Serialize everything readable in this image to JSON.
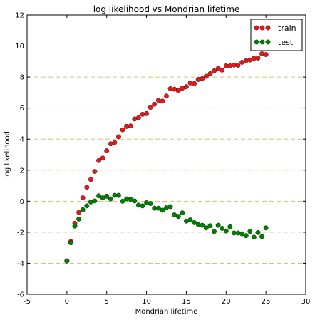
{
  "chart_data": {
    "type": "scatter",
    "title": "log likelihood vs Mondrian lifetime",
    "xlabel": "Mondrian lifetime",
    "ylabel": "log likelihood",
    "xlim": [
      -5,
      30
    ],
    "ylim": [
      -6,
      12
    ],
    "xticks": [
      -5,
      0,
      5,
      10,
      15,
      20,
      25,
      30
    ],
    "yticks": [
      -6,
      -4,
      -2,
      0,
      2,
      4,
      6,
      8,
      10,
      12
    ],
    "grid": "horizontal dashed",
    "legend_position": "top-right",
    "series": [
      {
        "name": "train",
        "color": "#e31a1c",
        "points": [
          [
            0.0,
            -3.85
          ],
          [
            0.5,
            -2.6
          ],
          [
            1.0,
            -1.42
          ],
          [
            1.5,
            -0.72
          ],
          [
            2.0,
            0.22
          ],
          [
            2.5,
            0.9
          ],
          [
            3.0,
            1.4
          ],
          [
            3.5,
            1.92
          ],
          [
            4.0,
            2.62
          ],
          [
            4.5,
            2.78
          ],
          [
            5.0,
            3.25
          ],
          [
            5.5,
            3.7
          ],
          [
            6.0,
            3.78
          ],
          [
            6.5,
            4.15
          ],
          [
            7.0,
            4.6
          ],
          [
            7.5,
            4.82
          ],
          [
            8.0,
            4.85
          ],
          [
            8.5,
            5.3
          ],
          [
            9.0,
            5.38
          ],
          [
            9.5,
            5.6
          ],
          [
            10.0,
            5.65
          ],
          [
            10.5,
            6.05
          ],
          [
            11.0,
            6.25
          ],
          [
            11.5,
            6.5
          ],
          [
            12.0,
            6.45
          ],
          [
            12.5,
            6.78
          ],
          [
            13.0,
            7.25
          ],
          [
            13.5,
            7.22
          ],
          [
            14.0,
            7.12
          ],
          [
            14.5,
            7.28
          ],
          [
            15.0,
            7.38
          ],
          [
            15.5,
            7.62
          ],
          [
            16.0,
            7.58
          ],
          [
            16.5,
            7.85
          ],
          [
            17.0,
            7.9
          ],
          [
            17.5,
            8.05
          ],
          [
            18.0,
            8.22
          ],
          [
            18.5,
            8.4
          ],
          [
            19.0,
            8.55
          ],
          [
            19.5,
            8.45
          ],
          [
            20.0,
            8.72
          ],
          [
            20.5,
            8.72
          ],
          [
            21.0,
            8.78
          ],
          [
            21.5,
            8.75
          ],
          [
            22.0,
            8.95
          ],
          [
            22.5,
            9.05
          ],
          [
            23.0,
            9.1
          ],
          [
            23.5,
            9.2
          ],
          [
            24.0,
            9.22
          ],
          [
            24.5,
            9.5
          ],
          [
            25.0,
            9.45
          ]
        ]
      },
      {
        "name": "test",
        "color": "#008000",
        "points": [
          [
            0.0,
            -3.85
          ],
          [
            0.5,
            -2.68
          ],
          [
            1.0,
            -1.6
          ],
          [
            1.5,
            -1.15
          ],
          [
            2.0,
            -0.55
          ],
          [
            2.5,
            -0.3
          ],
          [
            3.0,
            -0.05
          ],
          [
            3.5,
            0.02
          ],
          [
            4.0,
            0.35
          ],
          [
            4.5,
            0.22
          ],
          [
            5.0,
            0.32
          ],
          [
            5.5,
            0.15
          ],
          [
            6.0,
            0.38
          ],
          [
            6.5,
            0.38
          ],
          [
            7.0,
            0.0
          ],
          [
            7.5,
            0.15
          ],
          [
            8.0,
            0.12
          ],
          [
            8.5,
            0.02
          ],
          [
            9.0,
            -0.25
          ],
          [
            9.5,
            -0.3
          ],
          [
            10.0,
            -0.1
          ],
          [
            10.5,
            -0.15
          ],
          [
            11.0,
            -0.45
          ],
          [
            11.5,
            -0.45
          ],
          [
            12.0,
            -0.58
          ],
          [
            12.5,
            -0.42
          ],
          [
            13.0,
            -0.35
          ],
          [
            13.5,
            -0.88
          ],
          [
            14.0,
            -0.98
          ],
          [
            14.5,
            -0.75
          ],
          [
            15.0,
            -1.28
          ],
          [
            15.5,
            -1.2
          ],
          [
            16.0,
            -1.38
          ],
          [
            16.5,
            -1.5
          ],
          [
            17.0,
            -1.55
          ],
          [
            17.5,
            -1.72
          ],
          [
            18.0,
            -1.58
          ],
          [
            18.5,
            -1.95
          ],
          [
            19.0,
            -1.55
          ],
          [
            19.5,
            -1.75
          ],
          [
            20.0,
            -1.92
          ],
          [
            20.5,
            -1.65
          ],
          [
            21.0,
            -2.05
          ],
          [
            21.5,
            -2.05
          ],
          [
            22.0,
            -2.1
          ],
          [
            22.5,
            -2.22
          ],
          [
            23.0,
            -1.95
          ],
          [
            23.5,
            -2.32
          ],
          [
            24.0,
            -2.02
          ],
          [
            24.5,
            -2.28
          ],
          [
            25.0,
            -1.72
          ]
        ]
      }
    ]
  }
}
